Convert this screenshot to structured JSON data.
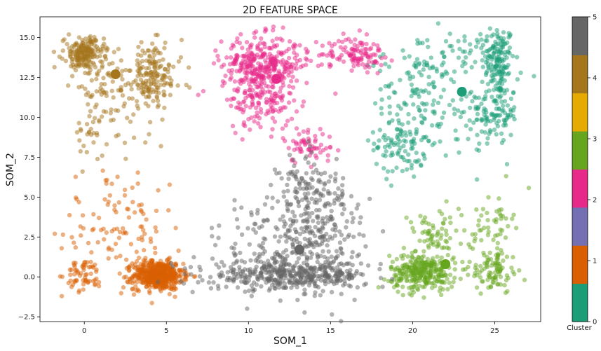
{
  "chart_data": {
    "type": "scatter",
    "title": "2D FEATURE SPACE",
    "xlabel": "SOM_1",
    "ylabel": "SOM_2",
    "xlim": [
      -2.7,
      27.8
    ],
    "ylim": [
      -2.8,
      16.3
    ],
    "x_ticks": [
      0,
      5,
      10,
      15,
      20,
      25
    ],
    "y_ticks": [
      -2.5,
      0.0,
      2.5,
      5.0,
      7.5,
      10.0,
      12.5,
      15.0
    ],
    "y_tick_labels": [
      "−2.5",
      "0.0",
      "2.5",
      "5.0",
      "7.5",
      "10.0",
      "12.5",
      "15.0"
    ],
    "grid": false,
    "colorbar": {
      "label": "Cluster",
      "ticks": [
        0,
        1,
        2,
        3,
        4,
        5
      ],
      "colors": [
        "#1b9e77",
        "#d95f02",
        "#7570b3",
        "#e7298a",
        "#66a61e",
        "#e6ab02",
        "#a6761d",
        "#666666"
      ]
    },
    "series": [
      {
        "cluster": 0,
        "color": "#1b9e77",
        "centroid": [
          23.0,
          11.6
        ],
        "blobs": [
          {
            "cx": 25.2,
            "cy": 13.6,
            "sx": 0.5,
            "sy": 1.1,
            "n": 140
          },
          {
            "cx": 25.0,
            "cy": 10.3,
            "sx": 0.7,
            "sy": 1.0,
            "n": 110
          },
          {
            "cx": 19.3,
            "cy": 8.5,
            "sx": 0.8,
            "sy": 1.2,
            "n": 110
          },
          {
            "cx": 21.8,
            "cy": 13.6,
            "sx": 2.0,
            "sy": 0.9,
            "n": 80
          },
          {
            "cx": 22.5,
            "cy": 9.8,
            "sx": 1.8,
            "sy": 1.3,
            "n": 60
          },
          {
            "cx": 20.2,
            "cy": 12.0,
            "sx": 1.2,
            "sy": 1.1,
            "n": 50
          }
        ]
      },
      {
        "cluster": 1,
        "color": "#d95f02",
        "centroid": [
          4.3,
          0.2
        ],
        "blobs": [
          {
            "cx": 4.5,
            "cy": 0.1,
            "sx": 0.75,
            "sy": 0.45,
            "n": 520
          },
          {
            "cx": 0.0,
            "cy": 0.1,
            "sx": 0.55,
            "sy": 0.5,
            "n": 60
          },
          {
            "cx": 2.5,
            "cy": 2.6,
            "sx": 1.9,
            "sy": 1.6,
            "n": 90
          },
          {
            "cx": 1.3,
            "cy": 5.0,
            "sx": 1.0,
            "sy": 1.0,
            "n": 25
          }
        ]
      },
      {
        "cluster": 3,
        "color": "#e7298a",
        "centroid": [
          11.7,
          12.4
        ],
        "blobs": [
          {
            "cx": 10.8,
            "cy": 13.3,
            "sx": 1.2,
            "sy": 0.9,
            "n": 320
          },
          {
            "cx": 10.8,
            "cy": 11.0,
            "sx": 1.0,
            "sy": 0.9,
            "n": 130
          },
          {
            "cx": 16.7,
            "cy": 14.0,
            "sx": 0.8,
            "sy": 0.5,
            "n": 100
          },
          {
            "cx": 13.7,
            "cy": 8.3,
            "sx": 0.8,
            "sy": 0.6,
            "n": 60
          },
          {
            "cx": 14.0,
            "cy": 13.6,
            "sx": 1.0,
            "sy": 0.8,
            "n": 30
          }
        ]
      },
      {
        "cluster": 5,
        "color": "#66a61e",
        "centroid": [
          22.0,
          0.8
        ],
        "blobs": [
          {
            "cx": 20.6,
            "cy": 0.3,
            "sx": 1.0,
            "sy": 0.55,
            "n": 300
          },
          {
            "cx": 25.0,
            "cy": 0.4,
            "sx": 0.7,
            "sy": 0.7,
            "n": 90
          },
          {
            "cx": 24.9,
            "cy": 3.4,
            "sx": 0.6,
            "sy": 1.0,
            "n": 50
          },
          {
            "cx": 21.3,
            "cy": 2.5,
            "sx": 1.1,
            "sy": 0.8,
            "n": 70
          }
        ]
      },
      {
        "cluster": 6,
        "color": "#a6761d",
        "centroid": [
          1.9,
          12.7
        ],
        "blobs": [
          {
            "cx": 0.0,
            "cy": 14.0,
            "sx": 0.6,
            "sy": 0.5,
            "n": 200
          },
          {
            "cx": 4.2,
            "cy": 12.6,
            "sx": 0.9,
            "sy": 1.0,
            "n": 170
          },
          {
            "cx": 1.2,
            "cy": 12.0,
            "sx": 1.0,
            "sy": 1.0,
            "n": 60
          },
          {
            "cx": 0.3,
            "cy": 9.0,
            "sx": 0.5,
            "sy": 0.9,
            "n": 30
          },
          {
            "cx": 2.8,
            "cy": 10.2,
            "sx": 1.2,
            "sy": 1.0,
            "n": 25
          }
        ]
      },
      {
        "cluster": 7,
        "color": "#666666",
        "centroid": [
          13.1,
          1.7
        ],
        "blobs": [
          {
            "cx": 12.5,
            "cy": 0.1,
            "sx": 2.4,
            "sy": 0.45,
            "n": 420
          },
          {
            "cx": 14.0,
            "cy": 2.5,
            "sx": 1.6,
            "sy": 1.5,
            "n": 250
          },
          {
            "cx": 13.8,
            "cy": 5.5,
            "sx": 1.0,
            "sy": 1.1,
            "n": 120
          },
          {
            "cx": 10.2,
            "cy": 2.0,
            "sx": 1.4,
            "sy": 1.5,
            "n": 60
          }
        ]
      }
    ]
  }
}
